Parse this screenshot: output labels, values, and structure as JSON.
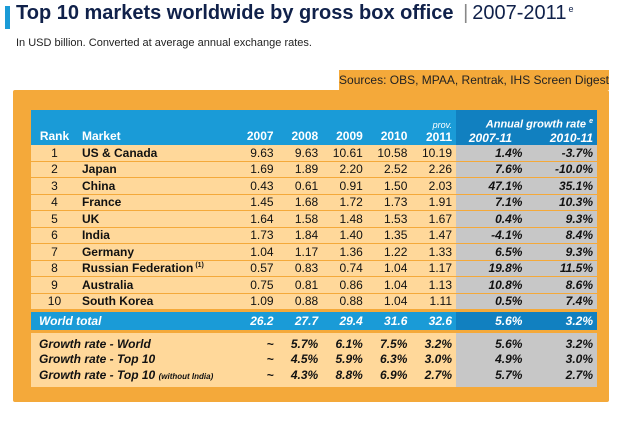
{
  "header": {
    "title_bold": "Top 10 markets worldwide by gross box office",
    "title_sep": "|",
    "title_period": "2007-2011",
    "title_sup": "e",
    "subtitle": "In USD billion. Converted at average annual exchange rates.",
    "sources": "Sources: OBS, MPAA, Rentrak, IHS Screen Digest"
  },
  "colors": {
    "accent_blue": "#1a9bd7",
    "panel_orange": "#f4a93a",
    "cell_light": "#ffd89a",
    "growth_grey": "#c7c7c7"
  },
  "table": {
    "headers": {
      "rank": "Rank",
      "market": "Market",
      "y2007": "2007",
      "y2008": "2008",
      "y2009": "2009",
      "y2010": "2010",
      "prov": "prov.",
      "y2011": "2011",
      "growth_caption": "Annual growth rate",
      "growth_sup": "e",
      "g1": "2007-11",
      "g2": "2010-11"
    },
    "rows": [
      {
        "rank": "1",
        "market": "US & Canada",
        "y2007": "9.63",
        "y2008": "9.63",
        "y2009": "10.61",
        "y2010": "10.58",
        "y2011": "10.19",
        "g1": "1.4%",
        "g2": "-3.7%"
      },
      {
        "rank": "2",
        "market": "Japan",
        "y2007": "1.69",
        "y2008": "1.89",
        "y2009": "2.20",
        "y2010": "2.52",
        "y2011": "2.26",
        "g1": "7.6%",
        "g2": "-10.0%"
      },
      {
        "rank": "3",
        "market": "China",
        "y2007": "0.43",
        "y2008": "0.61",
        "y2009": "0.91",
        "y2010": "1.50",
        "y2011": "2.03",
        "g1": "47.1%",
        "g2": "35.1%"
      },
      {
        "rank": "4",
        "market": "France",
        "y2007": "1.45",
        "y2008": "1.68",
        "y2009": "1.72",
        "y2010": "1.73",
        "y2011": "1.91",
        "g1": "7.1%",
        "g2": "10.3%"
      },
      {
        "rank": "5",
        "market": "UK",
        "y2007": "1.64",
        "y2008": "1.58",
        "y2009": "1.48",
        "y2010": "1.53",
        "y2011": "1.67",
        "g1": "0.4%",
        "g2": "9.3%"
      },
      {
        "rank": "6",
        "market": "India",
        "y2007": "1.73",
        "y2008": "1.84",
        "y2009": "1.40",
        "y2010": "1.35",
        "y2011": "1.47",
        "g1": "-4.1%",
        "g2": "8.4%"
      },
      {
        "rank": "7",
        "market": "Germany",
        "y2007": "1.04",
        "y2008": "1.17",
        "y2009": "1.36",
        "y2010": "1.22",
        "y2011": "1.33",
        "g1": "6.5%",
        "g2": "9.3%"
      },
      {
        "rank": "8",
        "market": "Russian Federation",
        "market_sup": "(1)",
        "y2007": "0.57",
        "y2008": "0.83",
        "y2009": "0.74",
        "y2010": "1.04",
        "y2011": "1.17",
        "g1": "19.8%",
        "g2": "11.5%"
      },
      {
        "rank": "9",
        "market": "Australia",
        "y2007": "0.75",
        "y2008": "0.81",
        "y2009": "0.86",
        "y2010": "1.04",
        "y2011": "1.13",
        "g1": "10.8%",
        "g2": "8.6%"
      },
      {
        "rank": "10",
        "market": "South Korea",
        "y2007": "1.09",
        "y2008": "0.88",
        "y2009": "0.88",
        "y2010": "1.04",
        "y2011": "1.11",
        "g1": "0.5%",
        "g2": "7.4%"
      }
    ],
    "world_total": {
      "label": "World total",
      "y2007": "26.2",
      "y2008": "27.7",
      "y2009": "29.4",
      "y2010": "31.6",
      "y2011": "32.6",
      "g1": "5.6%",
      "g2": "3.2%"
    },
    "growth_rows": [
      {
        "label": "Growth rate - World",
        "label_small": "",
        "y2007": "~",
        "y2008": "5.7%",
        "y2009": "6.1%",
        "y2010": "7.5%",
        "y2011": "3.2%",
        "g1": "5.6%",
        "g2": "3.2%"
      },
      {
        "label": "Growth rate - Top 10",
        "label_small": "",
        "y2007": "~",
        "y2008": "4.5%",
        "y2009": "5.9%",
        "y2010": "6.3%",
        "y2011": "3.0%",
        "g1": "4.9%",
        "g2": "3.0%"
      },
      {
        "label": "Growth rate - Top 10",
        "label_small": "(without India)",
        "y2007": "~",
        "y2008": "4.3%",
        "y2009": "8.8%",
        "y2010": "6.9%",
        "y2011": "2.7%",
        "g1": "5.7%",
        "g2": "2.7%"
      }
    ]
  }
}
